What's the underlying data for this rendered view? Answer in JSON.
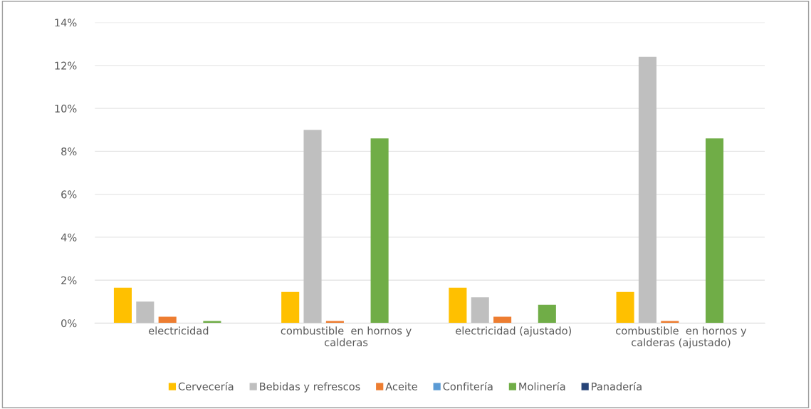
{
  "chart_data": {
    "type": "bar",
    "categories": [
      "electricidad",
      "combustible  en hornos y\ncalderas",
      "electricidad (ajustado)",
      "combustible  en hornos y\ncalderas (ajustado)"
    ],
    "series": [
      {
        "name": "Cervecería",
        "color": "#ffc000",
        "values": [
          1.65,
          1.45,
          1.65,
          1.45
        ]
      },
      {
        "name": "Bebidas y refrescos",
        "color": "#bfbfbf",
        "values": [
          1.0,
          9.0,
          1.2,
          12.4
        ]
      },
      {
        "name": "Aceite",
        "color": "#ed7d31",
        "values": [
          0.3,
          0.1,
          0.3,
          0.1
        ]
      },
      {
        "name": "Confitería",
        "color": "#5b9bd5",
        "values": [
          0,
          0,
          0,
          0
        ]
      },
      {
        "name": "Molinería",
        "color": "#70ad47",
        "values": [
          0.1,
          8.6,
          0.85,
          8.6
        ]
      },
      {
        "name": "Panadería",
        "color": "#264478",
        "values": [
          0,
          0,
          0,
          0
        ]
      }
    ],
    "ylim": [
      0,
      14
    ],
    "yticks": [
      {
        "value": 0,
        "label": "0%"
      },
      {
        "value": 2,
        "label": "2%"
      },
      {
        "value": 4,
        "label": "4%"
      },
      {
        "value": 6,
        "label": "6%"
      },
      {
        "value": 8,
        "label": "8%"
      },
      {
        "value": 10,
        "label": "10%"
      },
      {
        "value": 12,
        "label": "12%"
      },
      {
        "value": 14,
        "label": "14%"
      }
    ],
    "grid": "y",
    "legend": "bottom"
  }
}
